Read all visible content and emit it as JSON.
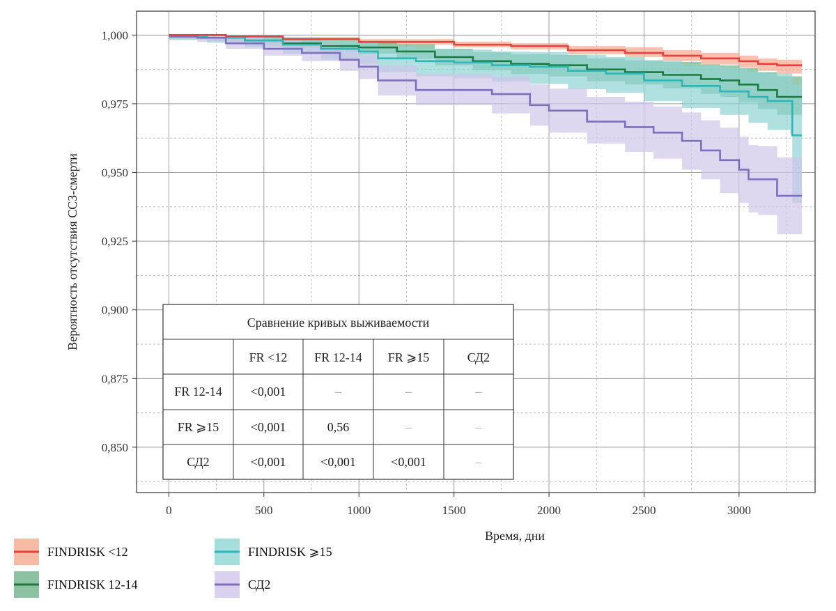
{
  "chart_data": {
    "type": "line",
    "xlabel": "Время, дни",
    "ylabel": "Вероятность отсутствия ССЗ-смерти",
    "xlim": [
      -170,
      3400
    ],
    "ylim": [
      0.8335,
      1.0087
    ],
    "x_ticks": [
      0,
      500,
      1000,
      1500,
      2000,
      2500,
      3000
    ],
    "x_tick_labels": [
      "0",
      "500",
      "1000",
      "1500",
      "2000",
      "2500",
      "3000"
    ],
    "y_ticks": [
      0.85,
      0.875,
      0.9,
      0.925,
      0.95,
      0.975,
      1.0
    ],
    "y_tick_labels": [
      "0,850",
      "0,875",
      "0,900",
      "0,925",
      "0,950",
      "0,975",
      "1,000"
    ],
    "grid": true,
    "legend_position": "bottom",
    "series": [
      {
        "name": "FINDRISK <12",
        "color": "#e8413c",
        "band_color": "#f4a98f",
        "x": [
          0,
          300,
          600,
          1000,
          1500,
          1800,
          2100,
          2400,
          2600,
          2800,
          3000,
          3100,
          3200,
          3330
        ],
        "y": [
          1.0,
          0.9995,
          0.9985,
          0.9975,
          0.9965,
          0.996,
          0.9945,
          0.9935,
          0.9925,
          0.9915,
          0.9905,
          0.9895,
          0.989,
          0.989
        ],
        "lower": [
          0.9992,
          0.999,
          0.998,
          0.9965,
          0.9955,
          0.9948,
          0.993,
          0.992,
          0.9905,
          0.9893,
          0.9882,
          0.987,
          0.986,
          0.9868
        ],
        "upper": [
          1.0,
          0.9998,
          0.9993,
          0.9985,
          0.9976,
          0.997,
          0.996,
          0.9955,
          0.9945,
          0.9935,
          0.9925,
          0.9915,
          0.991,
          0.991
        ]
      },
      {
        "name": "FINDRISK 12-14",
        "color": "#1a7a3f",
        "band_color": "#6fb38b",
        "x": [
          0,
          200,
          400,
          600,
          800,
          1000,
          1200,
          1400,
          1600,
          1800,
          2000,
          2200,
          2400,
          2600,
          2800,
          2900,
          3000,
          3100,
          3200,
          3330
        ],
        "y": [
          0.9995,
          0.999,
          0.998,
          0.997,
          0.996,
          0.9955,
          0.994,
          0.992,
          0.9905,
          0.9895,
          0.989,
          0.9875,
          0.9865,
          0.9855,
          0.984,
          0.9835,
          0.982,
          0.98,
          0.9775,
          0.9775
        ],
        "lower": [
          0.9985,
          0.9978,
          0.9965,
          0.9952,
          0.994,
          0.9932,
          0.9913,
          0.989,
          0.9872,
          0.9858,
          0.985,
          0.9832,
          0.982,
          0.9806,
          0.9786,
          0.9775,
          0.9755,
          0.973,
          0.971,
          0.9705
        ],
        "upper": [
          1.0,
          0.9998,
          0.9993,
          0.9988,
          0.998,
          0.9977,
          0.9967,
          0.995,
          0.9938,
          0.993,
          0.9928,
          0.9915,
          0.9908,
          0.9902,
          0.9893,
          0.989,
          0.988,
          0.9865,
          0.985,
          0.985
        ]
      },
      {
        "name": "FINDRISK ⩾15",
        "color": "#2fb5b5",
        "band_color": "#8fd3d3",
        "x": [
          0,
          200,
          400,
          600,
          800,
          1000,
          1100,
          1300,
          1500,
          1700,
          1900,
          2100,
          2300,
          2500,
          2700,
          2900,
          3050,
          3150,
          3270,
          3280,
          3330
        ],
        "y": [
          0.9995,
          0.999,
          0.998,
          0.9965,
          0.995,
          0.994,
          0.9915,
          0.9905,
          0.99,
          0.989,
          0.9885,
          0.987,
          0.986,
          0.9835,
          0.9815,
          0.9795,
          0.9775,
          0.976,
          0.976,
          0.9635,
          0.9635
        ],
        "lower": [
          0.9982,
          0.9972,
          0.9955,
          0.9932,
          0.991,
          0.9895,
          0.9865,
          0.985,
          0.9843,
          0.983,
          0.9822,
          0.9803,
          0.979,
          0.976,
          0.9735,
          0.971,
          0.968,
          0.9655,
          0.964,
          0.939,
          0.939
        ],
        "upper": [
          1.0,
          1.0,
          0.9998,
          0.999,
          0.998,
          0.9975,
          0.9958,
          0.995,
          0.9947,
          0.994,
          0.9938,
          0.9928,
          0.992,
          0.9905,
          0.989,
          0.988,
          0.9865,
          0.986,
          0.986,
          0.982,
          0.982
        ]
      },
      {
        "name": "СД2",
        "color": "#7b6fbf",
        "band_color": "#cfc6e8",
        "x": [
          0,
          150,
          300,
          500,
          700,
          900,
          1000,
          1100,
          1300,
          1500,
          1700,
          1900,
          2000,
          2200,
          2400,
          2550,
          2700,
          2800,
          2900,
          3000,
          3050,
          3100,
          3200,
          3330
        ],
        "y": [
          0.9995,
          0.999,
          0.997,
          0.995,
          0.9935,
          0.991,
          0.9885,
          0.9835,
          0.98,
          0.98,
          0.9785,
          0.9745,
          0.9725,
          0.9685,
          0.9665,
          0.9645,
          0.9615,
          0.958,
          0.9545,
          0.951,
          0.9475,
          0.9475,
          0.9415,
          0.9415
        ],
        "lower": [
          0.9985,
          0.9975,
          0.995,
          0.9925,
          0.9905,
          0.987,
          0.984,
          0.978,
          0.9745,
          0.9745,
          0.9715,
          0.967,
          0.9645,
          0.9605,
          0.9575,
          0.955,
          0.951,
          0.9475,
          0.9425,
          0.939,
          0.9355,
          0.9345,
          0.9275,
          0.9275
        ],
        "upper": [
          1.0,
          1.0,
          0.9993,
          0.998,
          0.9968,
          0.995,
          0.993,
          0.989,
          0.9858,
          0.9858,
          0.985,
          0.982,
          0.9805,
          0.9775,
          0.9758,
          0.974,
          0.9718,
          0.969,
          0.9663,
          0.963,
          0.96,
          0.9595,
          0.9555,
          0.9555
        ]
      }
    ]
  },
  "comparison_table": {
    "title": "Сравнение кривых выживаемости",
    "headers": [
      "",
      "FR <12",
      "FR 12-14",
      "FR ⩾15",
      "СД2"
    ],
    "rows": [
      [
        "FR 12-14",
        "<0,001",
        "–",
        "–",
        "–"
      ],
      [
        "FR ⩾15",
        "<0,001",
        "0,56",
        "–",
        "–"
      ],
      [
        "СД2",
        "<0,001",
        "<0,001",
        "<0,001",
        "–"
      ]
    ]
  },
  "legend": [
    {
      "label": "FINDRISK <12",
      "color": "#e8413c",
      "band_color": "#f4a98f"
    },
    {
      "label": "FINDRISK 12-14",
      "color": "#1a7a3f",
      "band_color": "#6fb38b"
    },
    {
      "label": "FINDRISK ⩾15",
      "color": "#2fb5b5",
      "band_color": "#8fd3d3"
    },
    {
      "label": "СД2",
      "color": "#7b6fbf",
      "band_color": "#cfc6e8"
    }
  ]
}
